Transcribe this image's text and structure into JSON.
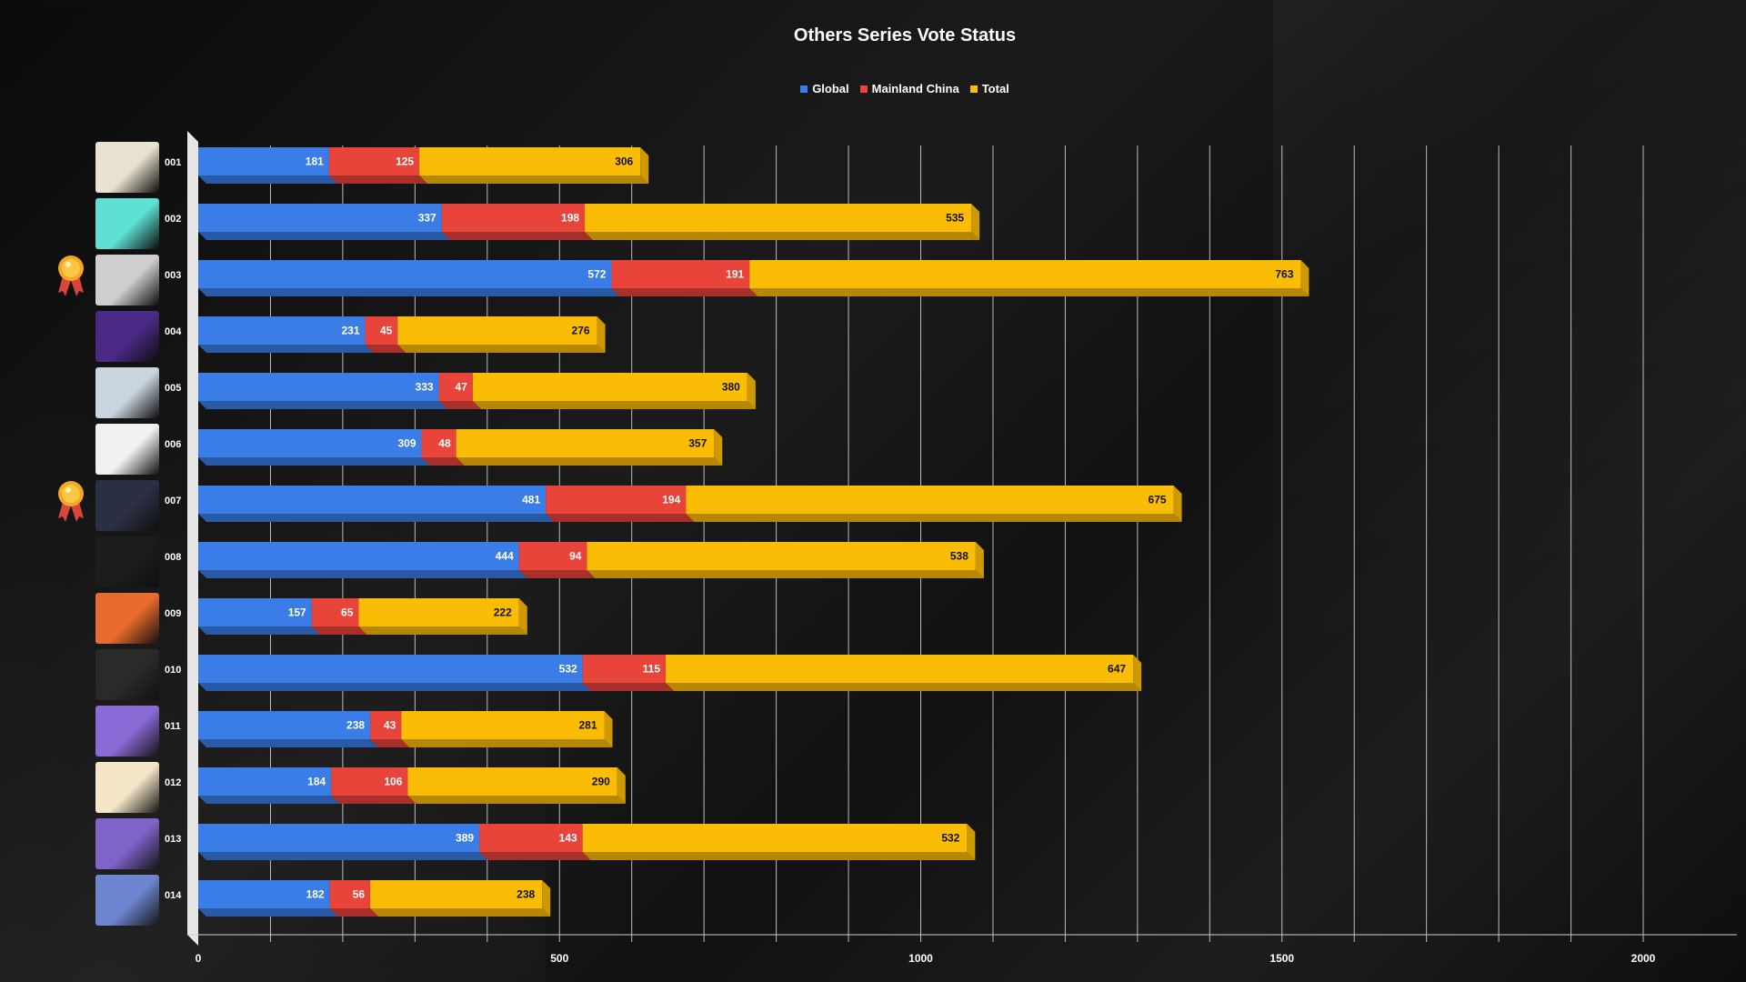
{
  "title": "Others Series Vote Status",
  "legend": [
    {
      "label": "Global",
      "color": "#3b7de6"
    },
    {
      "label": "Mainland China",
      "color": "#e8443a"
    },
    {
      "label": "Total",
      "color": "#fbbc05"
    }
  ],
  "chart_data": {
    "type": "bar",
    "orientation": "horizontal",
    "stacked": true,
    "title": "Others Series Vote Status",
    "categories": [
      "001",
      "002",
      "003",
      "004",
      "005",
      "006",
      "007",
      "008",
      "009",
      "010",
      "011",
      "012",
      "013",
      "014"
    ],
    "series": [
      {
        "name": "Global",
        "color": "#3b7de6",
        "values": [
          181,
          337,
          572,
          231,
          333,
          309,
          481,
          444,
          157,
          532,
          238,
          184,
          389,
          182
        ]
      },
      {
        "name": "Mainland China",
        "color": "#e8443a",
        "values": [
          125,
          198,
          191,
          45,
          47,
          48,
          194,
          94,
          65,
          115,
          43,
          106,
          143,
          56
        ]
      },
      {
        "name": "Total",
        "color": "#fbbc05",
        "values": [
          306,
          535,
          763,
          276,
          380,
          357,
          675,
          538,
          222,
          647,
          281,
          290,
          532,
          238
        ]
      }
    ],
    "x_ticks": [
      "0",
      "500",
      "1000",
      "1500",
      "2000"
    ],
    "xlim": [
      0,
      2000
    ],
    "grid": true,
    "legend_position": "top-center",
    "medal_rows": [
      "003",
      "007"
    ]
  },
  "thumbnail_colors": [
    "#e9e2d0",
    "#5ee0d4",
    "#cfcfcf",
    "#4b2a86",
    "#c9d6e0",
    "#f1f1f1",
    "#2b2f45",
    "#1c1c1c",
    "#e86a2c",
    "#2a2a2a",
    "#8a6ad6",
    "#f6e6c8",
    "#7e63c9",
    "#6d86cf"
  ]
}
